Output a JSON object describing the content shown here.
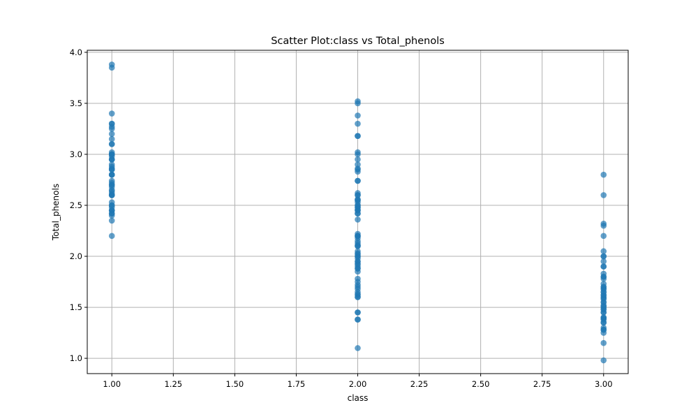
{
  "chart_data": {
    "type": "scatter",
    "title": "Scatter Plot:class vs Total_phenols",
    "xlabel": "class",
    "ylabel": "Total_phenols",
    "xlim": [
      0.9,
      3.1
    ],
    "ylim": [
      0.85,
      4.02
    ],
    "xticks": [
      1.0,
      1.25,
      1.5,
      1.75,
      2.0,
      2.25,
      2.5,
      2.75,
      3.0
    ],
    "xtick_labels": [
      "1.00",
      "1.25",
      "1.50",
      "1.75",
      "2.00",
      "2.25",
      "2.50",
      "2.75",
      "3.00"
    ],
    "yticks": [
      1.0,
      1.5,
      2.0,
      2.5,
      3.0,
      3.5,
      4.0
    ],
    "ytick_labels": [
      "1.0",
      "1.5",
      "2.0",
      "2.5",
      "3.0",
      "3.5",
      "4.0"
    ],
    "grid": true,
    "point_color": "#1f77b4",
    "series": [
      {
        "x": [
          1,
          1,
          1,
          1,
          1,
          1,
          1,
          1,
          1,
          1,
          1,
          1,
          1,
          1,
          1,
          1,
          1,
          1,
          1,
          1,
          1,
          1,
          1,
          1,
          1,
          1,
          1,
          1,
          1,
          1,
          1,
          1,
          1,
          1,
          1,
          1,
          1,
          1,
          1,
          1,
          1,
          1,
          1,
          1,
          1,
          1,
          1,
          1,
          1,
          1
        ],
        "y": [
          3.88,
          3.85,
          3.4,
          3.3,
          3.27,
          3.25,
          3.2,
          3.15,
          3.1,
          3.02,
          3.0,
          3.0,
          2.98,
          2.95,
          2.95,
          2.88,
          2.86,
          2.85,
          2.8,
          2.8,
          2.74,
          2.72,
          2.7,
          2.68,
          2.65,
          2.64,
          2.62,
          2.6,
          2.6,
          2.53,
          2.5,
          2.48,
          2.45,
          2.45,
          2.42,
          2.4,
          2.35,
          2.2,
          3.3,
          2.9,
          3.0,
          2.6,
          2.5,
          2.8,
          2.85,
          3.1,
          2.45,
          2.7,
          2.95,
          2.42
        ]
      },
      {
        "x": [
          2,
          2,
          2,
          2,
          2,
          2,
          2,
          2,
          2,
          2,
          2,
          2,
          2,
          2,
          2,
          2,
          2,
          2,
          2,
          2,
          2,
          2,
          2,
          2,
          2,
          2,
          2,
          2,
          2,
          2,
          2,
          2,
          2,
          2,
          2,
          2,
          2,
          2,
          2,
          2,
          2,
          2,
          2,
          2,
          2,
          2,
          2,
          2,
          2,
          2,
          2,
          2,
          2,
          2,
          2,
          2,
          2,
          2,
          2,
          2,
          2,
          2,
          2,
          2,
          2,
          2,
          2,
          2,
          2,
          2,
          2
        ],
        "y": [
          3.52,
          3.5,
          3.38,
          3.3,
          3.18,
          3.18,
          3.02,
          3.0,
          2.95,
          2.9,
          2.86,
          2.83,
          2.74,
          2.74,
          2.62,
          2.6,
          2.56,
          2.55,
          2.53,
          2.5,
          2.48,
          2.46,
          2.45,
          2.42,
          2.36,
          2.22,
          2.2,
          2.2,
          2.18,
          2.13,
          2.11,
          2.1,
          2.05,
          2.02,
          2.0,
          1.98,
          1.95,
          1.92,
          1.9,
          1.88,
          1.85,
          1.78,
          1.75,
          1.72,
          1.68,
          1.65,
          1.63,
          1.62,
          1.6,
          1.45,
          1.45,
          1.38,
          1.38,
          1.1,
          2.0,
          2.55,
          2.45,
          2.2,
          1.95,
          1.88,
          2.1,
          2.6,
          1.7,
          2.48,
          1.93,
          2.03,
          2.5,
          2.85,
          1.6,
          2.15,
          2.42
        ]
      },
      {
        "x": [
          3,
          3,
          3,
          3,
          3,
          3,
          3,
          3,
          3,
          3,
          3,
          3,
          3,
          3,
          3,
          3,
          3,
          3,
          3,
          3,
          3,
          3,
          3,
          3,
          3,
          3,
          3,
          3,
          3,
          3,
          3,
          3,
          3,
          3,
          3,
          3,
          3,
          3,
          3,
          3,
          3,
          3,
          3,
          3,
          3,
          3,
          3,
          3
        ],
        "y": [
          2.8,
          2.6,
          2.32,
          2.3,
          2.2,
          2.05,
          2.0,
          1.95,
          1.9,
          1.83,
          1.8,
          1.78,
          1.73,
          1.7,
          1.68,
          1.65,
          1.62,
          1.6,
          1.59,
          1.55,
          1.51,
          1.5,
          1.48,
          1.45,
          1.4,
          1.39,
          1.38,
          1.35,
          1.3,
          1.28,
          1.25,
          1.15,
          0.98,
          1.62,
          1.48,
          1.8,
          1.7,
          1.52,
          1.65,
          2.0,
          1.4,
          1.55,
          1.28,
          1.58,
          1.35,
          1.68,
          1.9,
          1.45
        ]
      }
    ]
  }
}
